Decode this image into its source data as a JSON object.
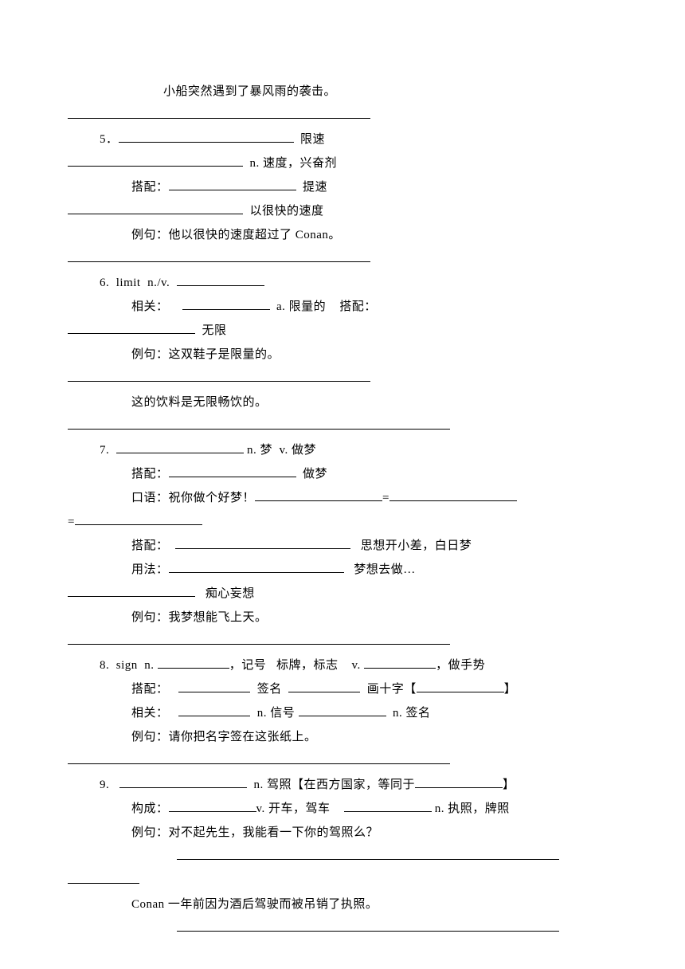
{
  "intro": {
    "example_sentence": "小船突然遇到了暴风雨的袭击。"
  },
  "item5": {
    "number": "5．",
    "label1": "限速",
    "pos1": "n. 速度，兴奋剂",
    "peidui": "搭配：",
    "label2": "提速",
    "label3": "以很快的速度",
    "liju": "例句：他以很快的速度超过了 Conan。"
  },
  "item6": {
    "number": "6.",
    "word": "limit  n./v.",
    "xiangguan": "相关：",
    "pos1": "a. 限量的",
    "peidui_label": "搭配：",
    "label1": "无限",
    "liju1": "例句：这双鞋子是限量的。",
    "liju2": "这的饮料是无限畅饮的。"
  },
  "item7": {
    "number": "7.",
    "pos": "n. 梦  v. 做梦",
    "peidui": "搭配：",
    "label1": "做梦",
    "kouyu": "口语：祝你做个好梦！",
    "peidui2": "搭配：",
    "label2": "思想开小差，白日梦",
    "yongfa": "用法：",
    "label3": "梦想去做…",
    "label4": "痴心妄想",
    "liju": "例句：我梦想能飞上天。"
  },
  "item8": {
    "number": "8.",
    "word": "sign  n.",
    "label1": "，记号   标牌，标志",
    "pos2": "v.",
    "label2": "，做手势",
    "peidui": "搭配：",
    "label3": "签名",
    "label4": "画十字【",
    "bracket_close": "】",
    "xiangguan": "相关：",
    "pos3": "n. 信号",
    "pos4": "n. 签名",
    "liju": "例句：请你把名字签在这张纸上。"
  },
  "item9": {
    "number": "9.",
    "label1": "n. 驾照【在西方国家，等同于",
    "bracket_close": "】",
    "goucheng": "构成：",
    "label2": "v. 开车，驾车",
    "label3": "n. 执照，牌照",
    "liju": "例句：对不起先生，我能看一下你的驾照么？",
    "liju2": "Conan 一年前因为酒后驾驶而被吊销了执照。"
  }
}
